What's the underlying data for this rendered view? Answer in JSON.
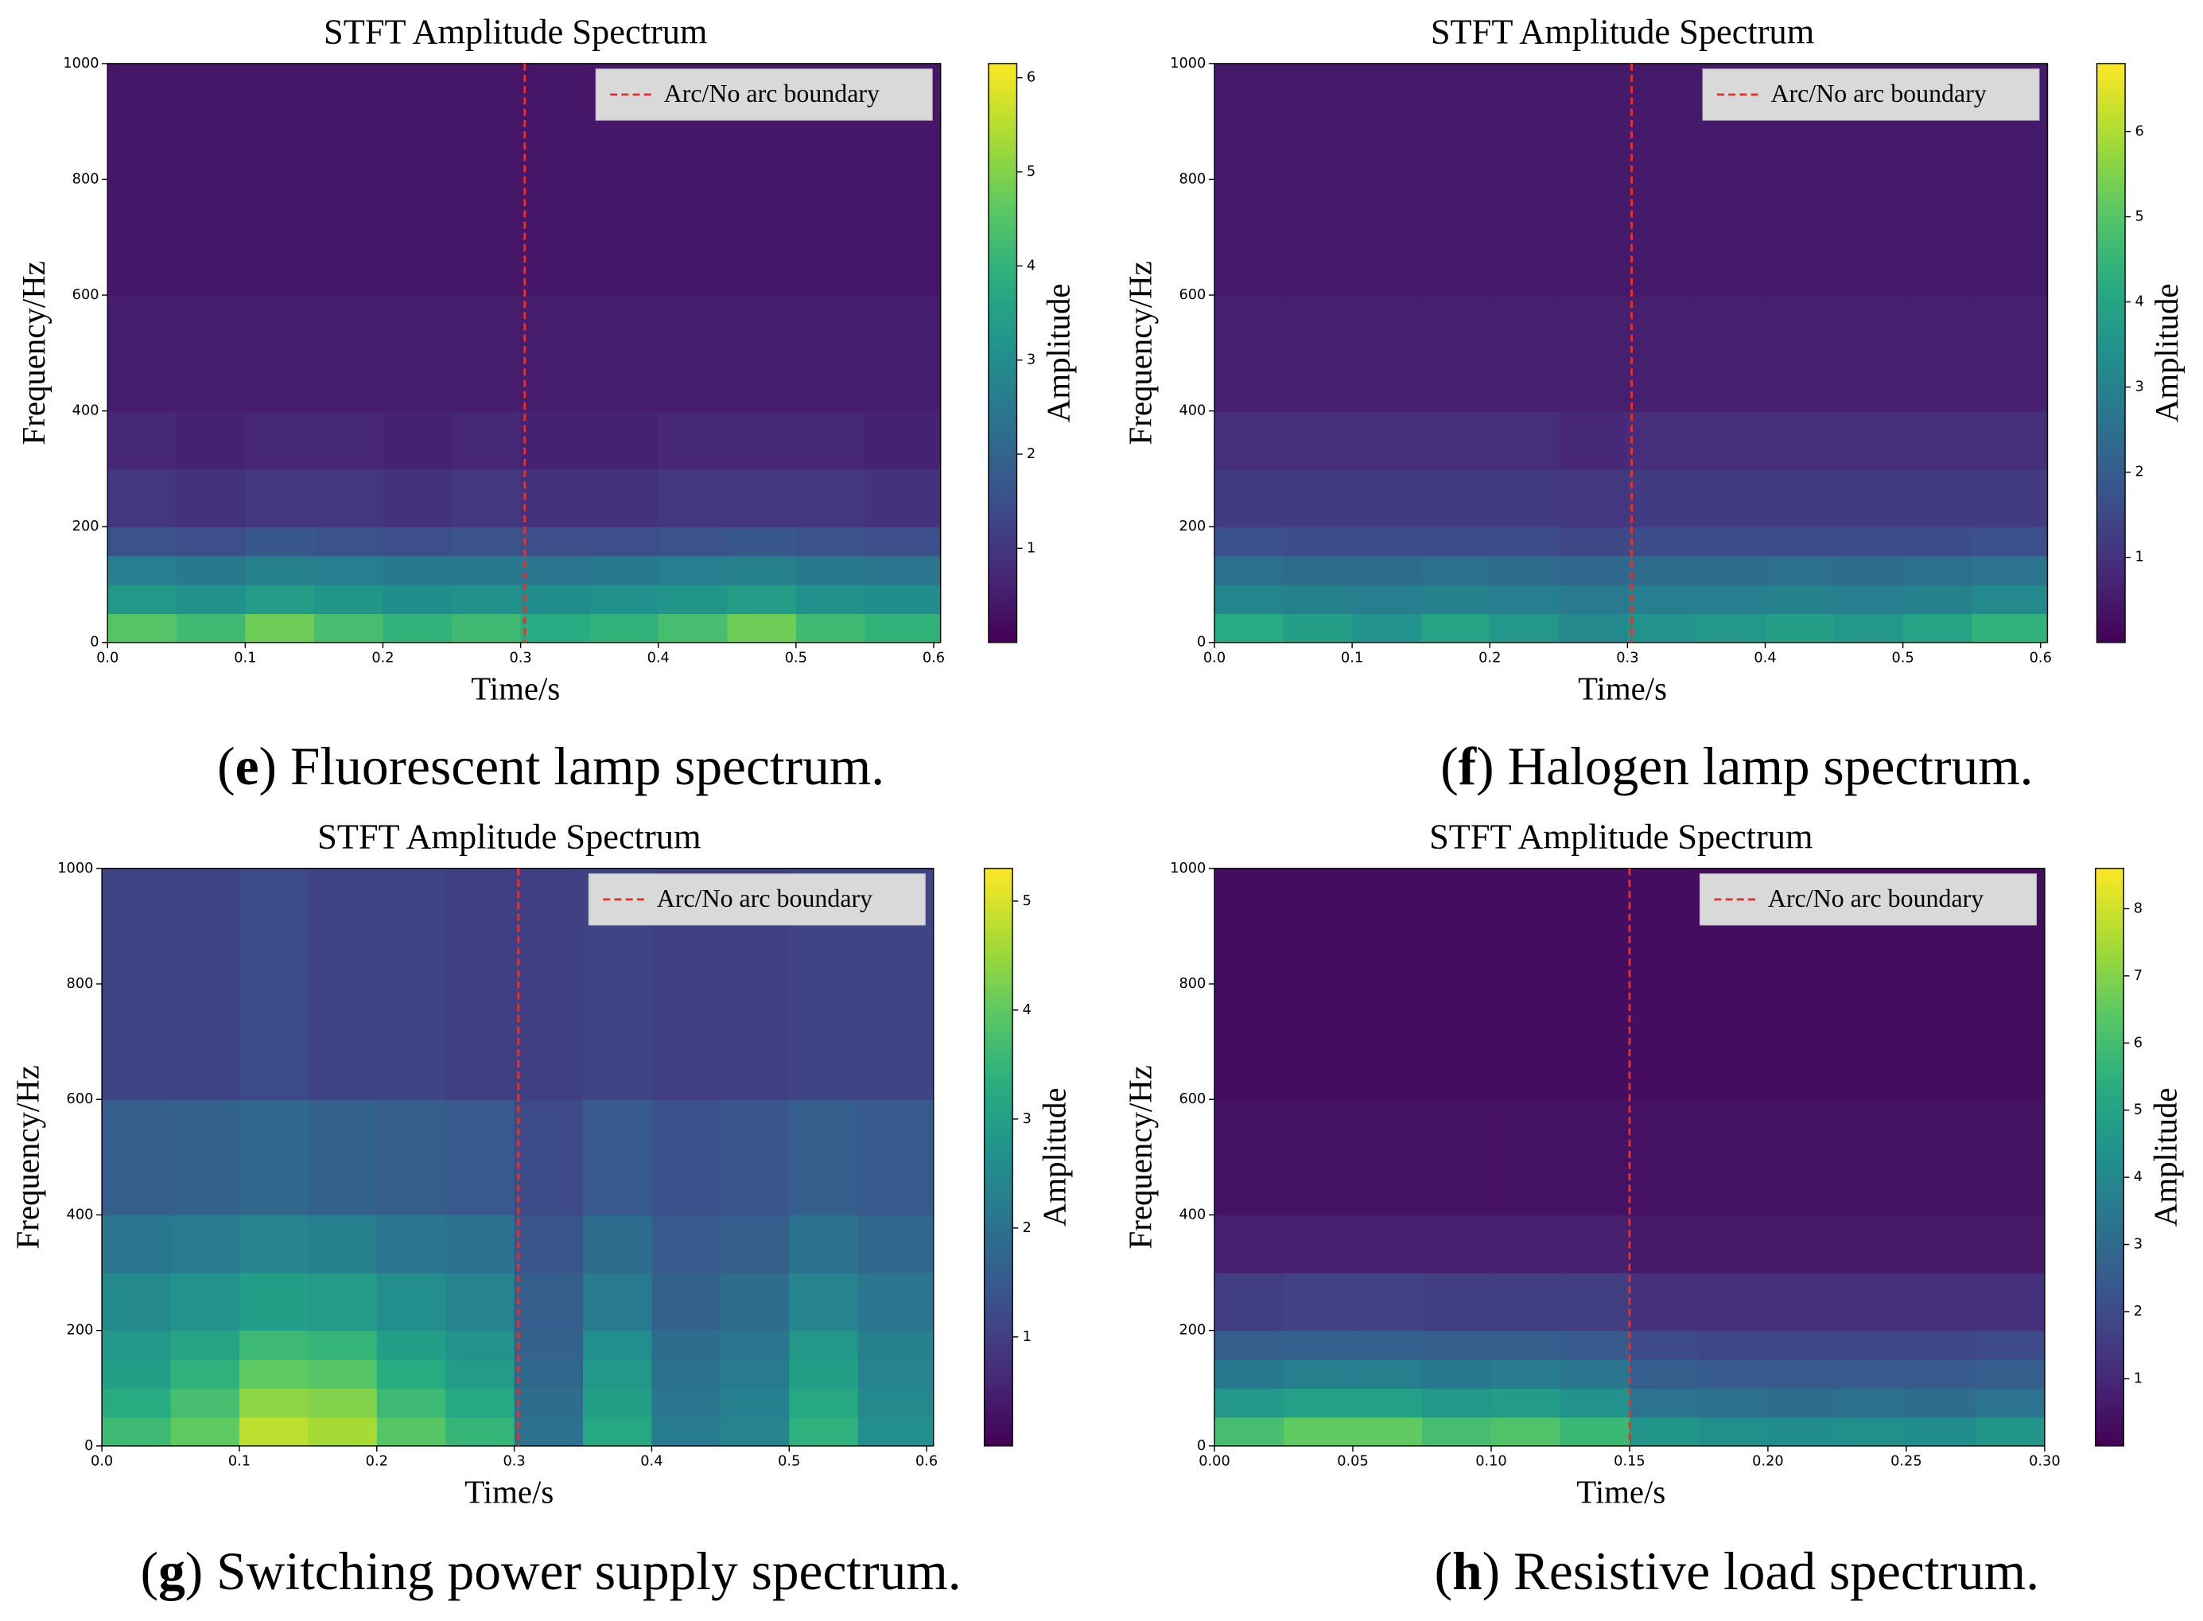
{
  "chart_data": [
    {
      "type": "heatmap",
      "title": "STFT Amplitude Spectrum",
      "xlabel": "Time/s",
      "ylabel": "Frequency/Hz",
      "colorbar_label": "Amplitude",
      "colormap": "viridis",
      "caption": {
        "open": "(",
        "letter": "e",
        "text": ") Fluorescent lamp spectrum."
      },
      "xlim": [
        0,
        0.605
      ],
      "ylim": [
        0,
        1000
      ],
      "xticks": [
        {
          "value": 0,
          "label": "0.0"
        },
        {
          "value": 0.1,
          "label": "0.1"
        },
        {
          "value": 0.2,
          "label": "0.2"
        },
        {
          "value": 0.3,
          "label": "0.3"
        },
        {
          "value": 0.4,
          "label": "0.4"
        },
        {
          "value": 0.5,
          "label": "0.5"
        },
        {
          "value": 0.6,
          "label": "0.6"
        }
      ],
      "yticks": [
        0,
        200,
        400,
        600,
        800,
        1000
      ],
      "clim": [
        0,
        6.15
      ],
      "cticks": [
        1,
        2,
        3,
        4,
        5,
        6
      ],
      "boundary": {
        "name": "Arc/No arc boundary",
        "x": 0.303,
        "color": "#e8312a"
      },
      "xbins": [
        0,
        0.05,
        0.1,
        0.15,
        0.2,
        0.25,
        0.3,
        0.35,
        0.4,
        0.45,
        0.5,
        0.55,
        0.605
      ],
      "ybins": [
        0,
        50,
        100,
        150,
        200,
        300,
        400,
        600,
        1000
      ],
      "z": [
        [
          4.5,
          4.2,
          4.8,
          4.3,
          4.0,
          4.2,
          3.8,
          4.0,
          4.3,
          4.8,
          4.2,
          4.0
        ],
        [
          3.3,
          3.1,
          3.4,
          3.2,
          3.0,
          3.1,
          3.0,
          3.1,
          3.2,
          3.4,
          3.1,
          3.0
        ],
        [
          2.6,
          2.5,
          2.7,
          2.6,
          2.5,
          2.5,
          2.4,
          2.5,
          2.6,
          2.7,
          2.5,
          2.4
        ],
        [
          1.6,
          1.5,
          1.7,
          1.6,
          1.5,
          1.6,
          1.5,
          1.5,
          1.6,
          1.7,
          1.6,
          1.5
        ],
        [
          1.0,
          0.9,
          1.0,
          1.0,
          0.9,
          1.0,
          0.9,
          0.9,
          1.0,
          1.0,
          1.0,
          0.9
        ],
        [
          0.7,
          0.6,
          0.7,
          0.7,
          0.6,
          0.7,
          0.6,
          0.6,
          0.7,
          0.7,
          0.7,
          0.6
        ],
        [
          0.5,
          0.5,
          0.5,
          0.5,
          0.5,
          0.5,
          0.5,
          0.5,
          0.5,
          0.5,
          0.5,
          0.5
        ],
        [
          0.4,
          0.4,
          0.4,
          0.4,
          0.4,
          0.4,
          0.4,
          0.4,
          0.4,
          0.4,
          0.4,
          0.4
        ]
      ]
    },
    {
      "type": "heatmap",
      "title": "STFT Amplitude Spectrum",
      "xlabel": "Time/s",
      "ylabel": "Frequency/Hz",
      "colorbar_label": "Amplitude",
      "colormap": "viridis",
      "caption": {
        "open": "(",
        "letter": "f",
        "text": ") Halogen lamp spectrum."
      },
      "xlim": [
        0,
        0.605
      ],
      "ylim": [
        0,
        1000
      ],
      "xticks": [
        {
          "value": 0,
          "label": "0.0"
        },
        {
          "value": 0.1,
          "label": "0.1"
        },
        {
          "value": 0.2,
          "label": "0.2"
        },
        {
          "value": 0.3,
          "label": "0.3"
        },
        {
          "value": 0.4,
          "label": "0.4"
        },
        {
          "value": 0.5,
          "label": "0.5"
        },
        {
          "value": 0.6,
          "label": "0.6"
        }
      ],
      "yticks": [
        0,
        200,
        400,
        600,
        800,
        1000
      ],
      "clim": [
        0,
        6.8
      ],
      "cticks": [
        1,
        2,
        3,
        4,
        5,
        6
      ],
      "boundary": {
        "name": "Arc/No arc boundary",
        "x": 0.303,
        "color": "#e8312a"
      },
      "xbins": [
        0,
        0.05,
        0.1,
        0.15,
        0.2,
        0.25,
        0.3,
        0.35,
        0.4,
        0.45,
        0.5,
        0.55,
        0.605
      ],
      "ybins": [
        0,
        50,
        100,
        150,
        200,
        300,
        400,
        600,
        1000
      ],
      "z": [
        [
          4.2,
          3.8,
          3.5,
          4.0,
          3.6,
          3.2,
          3.5,
          3.6,
          3.8,
          3.6,
          4.0,
          4.4
        ],
        [
          3.1,
          3.0,
          2.9,
          3.0,
          2.9,
          2.8,
          2.9,
          2.9,
          3.0,
          2.9,
          3.0,
          3.2
        ],
        [
          2.5,
          2.4,
          2.4,
          2.5,
          2.4,
          2.3,
          2.4,
          2.4,
          2.5,
          2.4,
          2.5,
          2.6
        ],
        [
          1.7,
          1.6,
          1.6,
          1.6,
          1.6,
          1.5,
          1.6,
          1.6,
          1.6,
          1.6,
          1.6,
          1.7
        ],
        [
          1.2,
          1.2,
          1.2,
          1.2,
          1.2,
          1.1,
          1.2,
          1.2,
          1.2,
          1.2,
          1.2,
          1.2
        ],
        [
          0.9,
          0.9,
          0.9,
          0.9,
          0.9,
          0.8,
          0.9,
          0.9,
          0.9,
          0.9,
          0.9,
          0.9
        ],
        [
          0.6,
          0.6,
          0.6,
          0.6,
          0.6,
          0.6,
          0.6,
          0.6,
          0.6,
          0.6,
          0.6,
          0.6
        ],
        [
          0.5,
          0.5,
          0.5,
          0.5,
          0.5,
          0.5,
          0.5,
          0.5,
          0.5,
          0.5,
          0.5,
          0.5
        ]
      ]
    },
    {
      "type": "heatmap",
      "title": "STFT Amplitude Spectrum",
      "xlabel": "Time/s",
      "ylabel": "Frequency/Hz",
      "colorbar_label": "Amplitude",
      "colormap": "viridis",
      "caption": {
        "open": "(",
        "letter": "g",
        "text": ") Switching power supply spectrum."
      },
      "xlim": [
        0,
        0.605
      ],
      "ylim": [
        0,
        1000
      ],
      "xticks": [
        {
          "value": 0,
          "label": "0.0"
        },
        {
          "value": 0.1,
          "label": "0.1"
        },
        {
          "value": 0.2,
          "label": "0.2"
        },
        {
          "value": 0.3,
          "label": "0.3"
        },
        {
          "value": 0.4,
          "label": "0.4"
        },
        {
          "value": 0.5,
          "label": "0.5"
        },
        {
          "value": 0.6,
          "label": "0.6"
        }
      ],
      "yticks": [
        0,
        200,
        400,
        600,
        800,
        1000
      ],
      "clim": [
        0,
        5.3
      ],
      "cticks": [
        1,
        2,
        3,
        4,
        5
      ],
      "boundary": {
        "name": "Arc/No arc boundary",
        "x": 0.303,
        "color": "#e8312a"
      },
      "xbins": [
        0,
        0.05,
        0.1,
        0.15,
        0.2,
        0.25,
        0.3,
        0.35,
        0.4,
        0.45,
        0.5,
        0.55,
        0.605
      ],
      "ybins": [
        0,
        50,
        100,
        150,
        200,
        300,
        400,
        600,
        1000
      ],
      "z": [
        [
          3.6,
          4.0,
          4.8,
          4.6,
          3.9,
          3.5,
          2.0,
          3.2,
          2.2,
          2.4,
          3.4,
          2.6
        ],
        [
          3.3,
          3.7,
          4.4,
          4.3,
          3.6,
          3.2,
          1.9,
          3.0,
          2.1,
          2.3,
          3.2,
          2.5
        ],
        [
          3.0,
          3.4,
          4.0,
          3.9,
          3.3,
          2.9,
          1.8,
          2.8,
          2.0,
          2.2,
          3.0,
          2.4
        ],
        [
          2.8,
          3.1,
          3.6,
          3.5,
          3.0,
          2.7,
          1.7,
          2.6,
          1.9,
          2.1,
          2.8,
          2.3
        ],
        [
          2.5,
          2.7,
          3.0,
          2.9,
          2.6,
          2.4,
          1.6,
          2.2,
          1.7,
          1.9,
          2.4,
          2.1
        ],
        [
          2.1,
          2.2,
          2.4,
          2.3,
          2.1,
          2.0,
          1.4,
          1.9,
          1.5,
          1.6,
          2.0,
          1.8
        ],
        [
          1.6,
          1.7,
          1.8,
          1.7,
          1.6,
          1.5,
          1.2,
          1.5,
          1.3,
          1.4,
          1.6,
          1.5
        ],
        [
          1.1,
          1.1,
          1.2,
          1.1,
          1.1,
          1.0,
          1.0,
          1.1,
          1.0,
          1.0,
          1.1,
          1.1
        ]
      ]
    },
    {
      "type": "heatmap",
      "title": "STFT Amplitude Spectrum",
      "xlabel": "Time/s",
      "ylabel": "Frequency/Hz",
      "colorbar_label": "Amplitude",
      "colormap": "viridis",
      "caption": {
        "open": "(",
        "letter": "h",
        "text": ") Resistive load spectrum."
      },
      "xlim": [
        0,
        0.3
      ],
      "ylim": [
        0,
        1000
      ],
      "xticks": [
        {
          "value": 0,
          "label": "0.00"
        },
        {
          "value": 0.05,
          "label": "0.05"
        },
        {
          "value": 0.1,
          "label": "0.10"
        },
        {
          "value": 0.15,
          "label": "0.15"
        },
        {
          "value": 0.2,
          "label": "0.20"
        },
        {
          "value": 0.25,
          "label": "0.25"
        },
        {
          "value": 0.3,
          "label": "0.30"
        }
      ],
      "yticks": [
        0,
        200,
        400,
        600,
        800,
        1000
      ],
      "clim": [
        0,
        8.6
      ],
      "cticks": [
        1,
        2,
        3,
        4,
        5,
        6,
        7,
        8
      ],
      "boundary": {
        "name": "Arc/No arc boundary",
        "x": 0.15,
        "color": "#e8312a"
      },
      "xbins": [
        0,
        0.025,
        0.05,
        0.075,
        0.1,
        0.125,
        0.15,
        0.175,
        0.2,
        0.225,
        0.25,
        0.275,
        0.3
      ],
      "ybins": [
        0,
        50,
        100,
        150,
        200,
        300,
        400,
        600,
        1000
      ],
      "z": [
        [
          6.0,
          6.5,
          6.5,
          6.0,
          6.2,
          5.8,
          4.5,
          4.3,
          4.2,
          4.3,
          4.2,
          4.5
        ],
        [
          4.6,
          4.9,
          4.9,
          4.6,
          4.7,
          4.4,
          3.3,
          3.2,
          3.1,
          3.2,
          3.1,
          3.3
        ],
        [
          3.5,
          3.7,
          3.7,
          3.5,
          3.6,
          3.4,
          2.6,
          2.5,
          2.5,
          2.5,
          2.5,
          2.6
        ],
        [
          2.6,
          2.7,
          2.7,
          2.6,
          2.6,
          2.5,
          2.0,
          1.9,
          1.9,
          1.9,
          1.9,
          2.0
        ],
        [
          1.6,
          1.7,
          1.7,
          1.6,
          1.6,
          1.6,
          1.2,
          1.2,
          1.2,
          1.2,
          1.2,
          1.2
        ],
        [
          0.8,
          0.8,
          0.8,
          0.8,
          0.8,
          0.8,
          0.6,
          0.6,
          0.6,
          0.6,
          0.6,
          0.6
        ],
        [
          0.4,
          0.4,
          0.4,
          0.4,
          0.4,
          0.4,
          0.4,
          0.4,
          0.4,
          0.4,
          0.4,
          0.4
        ],
        [
          0.3,
          0.3,
          0.3,
          0.3,
          0.3,
          0.3,
          0.3,
          0.3,
          0.3,
          0.3,
          0.3,
          0.3
        ]
      ]
    }
  ]
}
